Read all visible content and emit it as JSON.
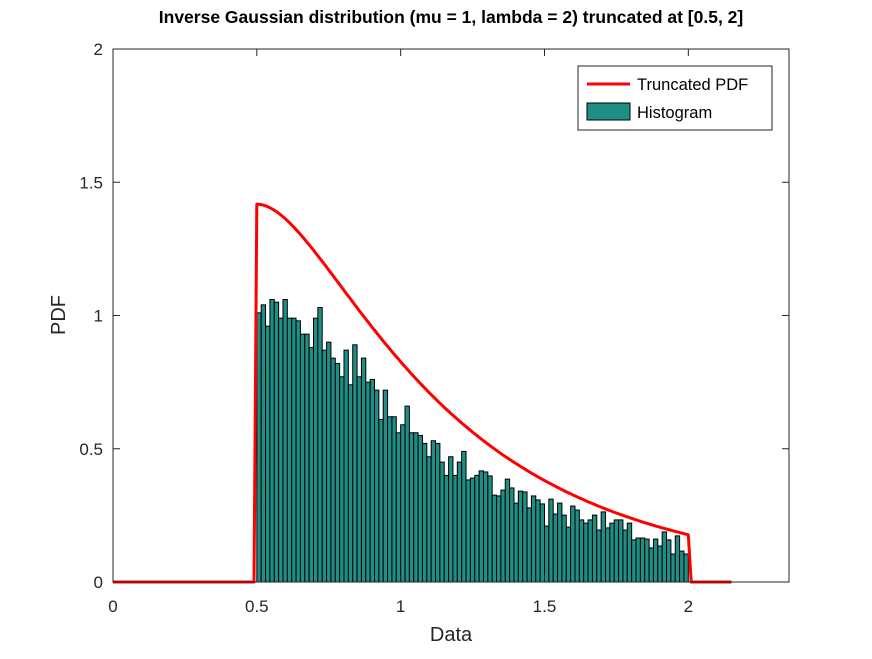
{
  "chart_data": {
    "type": "bar",
    "title": "Inverse Gaussian distribution (mu = 1, lambda = 2) truncated at [0.5, 2]",
    "xlabel": "Data",
    "ylabel": "PDF",
    "xlim": [
      0,
      2.35
    ],
    "ylim": [
      0,
      2
    ],
    "xticks": [
      0,
      0.5,
      1,
      1.5,
      2
    ],
    "xtick_labels": [
      "0",
      "0.5",
      "1",
      "1.5",
      "2"
    ],
    "yticks": [
      0,
      0.5,
      1,
      1.5,
      2
    ],
    "ytick_labels": [
      "0",
      "0.5",
      "1",
      "1.5",
      "2"
    ],
    "grid": false,
    "legend": {
      "placement": "top-right",
      "entries": [
        "Truncated PDF",
        "Histogram"
      ]
    },
    "colors": {
      "pdf": "#ff0000",
      "histogram": "#1f8f85",
      "edge": "#000000"
    },
    "series": [
      {
        "name": "Truncated PDF",
        "type": "line",
        "distribution": "inverse-gaussian",
        "mu": 1,
        "lambda": 2,
        "truncation": [
          0.5,
          2
        ],
        "x_range": [
          0,
          2.15
        ]
      },
      {
        "name": "Histogram",
        "type": "bar",
        "bin_range": [
          0.5,
          2
        ],
        "values": [
          1.01,
          1.04,
          0.96,
          1.06,
          1.05,
          0.99,
          1.06,
          0.99,
          0.99,
          0.98,
          0.93,
          0.93,
          0.88,
          0.99,
          1.03,
          0.87,
          0.9,
          0.84,
          0.82,
          0.77,
          0.87,
          0.74,
          0.89,
          0.77,
          0.84,
          0.75,
          0.76,
          0.72,
          0.61,
          0.72,
          0.62,
          0.62,
          0.56,
          0.59,
          0.66,
          0.56,
          0.56,
          0.55,
          0.52,
          0.47,
          0.53,
          0.52,
          0.45,
          0.4,
          0.47,
          0.4,
          0.45,
          0.49,
          0.383,
          0.39,
          0.4,
          0.417,
          0.413,
          0.398,
          0.326,
          0.323,
          0.345,
          0.386,
          0.353,
          0.296,
          0.341,
          0.338,
          0.278,
          0.323,
          0.308,
          0.293,
          0.21,
          0.311,
          0.255,
          0.296,
          0.251,
          0.206,
          0.285,
          0.27,
          0.233,
          0.221,
          0.233,
          0.251,
          0.195,
          0.263,
          0.203,
          0.221,
          0.233,
          0.233,
          0.195,
          0.221,
          0.158,
          0.165,
          0.165,
          0.161,
          0.128,
          0.161,
          0.135,
          0.188,
          0.158,
          0.105,
          0.173,
          0.116,
          0.105
        ]
      }
    ]
  }
}
